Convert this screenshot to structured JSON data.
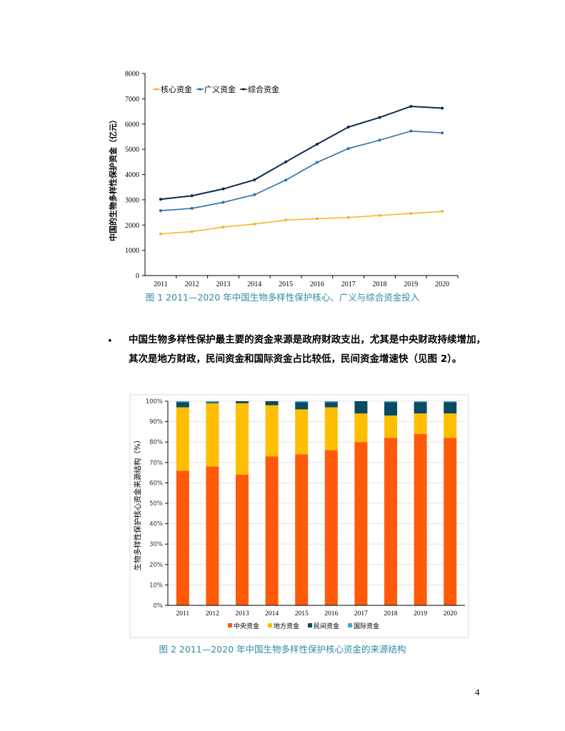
{
  "colors": {
    "core": "#f6b52b",
    "broad": "#2b6fa8",
    "comprehensive": "#0b2a52",
    "central": "#ff5a0a",
    "local": "#ffbe00",
    "private": "#0a4a63",
    "international": "#4aa6d6",
    "caption": "#2e8ba6"
  },
  "chart_data": [
    {
      "type": "line",
      "title": "",
      "ylabel": "中国的生物多样性保护资金（亿元）",
      "xlabel": "",
      "x": [
        "2011",
        "2012",
        "2013",
        "2014",
        "2015",
        "2016",
        "2017",
        "2018",
        "2019",
        "2020"
      ],
      "ylim": [
        0,
        8000
      ],
      "yticks": [
        "0",
        "1000",
        "2000",
        "3000",
        "4000",
        "5000",
        "6000",
        "7000",
        "8000"
      ],
      "legend": [
        "核心资金",
        "广义资金",
        "综合资金"
      ],
      "series": [
        {
          "name": "核心资金",
          "values": [
            1650,
            1740,
            1920,
            2040,
            2200,
            2250,
            2300,
            2380,
            2460,
            2540
          ]
        },
        {
          "name": "广义资金",
          "values": [
            2570,
            2660,
            2900,
            3200,
            3780,
            4480,
            5030,
            5360,
            5720,
            5650
          ]
        },
        {
          "name": "综合资金",
          "values": [
            3020,
            3160,
            3430,
            3790,
            4500,
            5200,
            5880,
            6260,
            6700,
            6630
          ]
        }
      ]
    },
    {
      "type": "bar",
      "stacked": true,
      "title": "",
      "ylabel": "生物多样性保护核心资金来源结构（%）",
      "xlabel": "",
      "categories": [
        "2011",
        "2012",
        "2013",
        "2014",
        "2015",
        "2016",
        "2017",
        "2018",
        "2019",
        "2020"
      ],
      "ylim": [
        0,
        100
      ],
      "yticks": [
        "0%",
        "10%",
        "20%",
        "30%",
        "40%",
        "50%",
        "60%",
        "70%",
        "80%",
        "90%",
        "100%"
      ],
      "series": [
        {
          "name": "中央资金",
          "values": [
            66,
            68,
            64,
            73,
            74,
            76,
            80,
            82,
            84,
            82
          ]
        },
        {
          "name": "地方资金",
          "values": [
            31,
            31,
            35,
            25,
            22,
            21,
            14,
            11,
            10,
            12
          ]
        },
        {
          "name": "民间资金",
          "values": [
            2.5,
            0.5,
            1,
            2,
            3.5,
            2.5,
            6,
            6.5,
            5.5,
            5.5
          ]
        },
        {
          "name": "国际资金",
          "values": [
            0.5,
            0.5,
            0,
            0,
            0.5,
            0.5,
            0,
            0.5,
            0.5,
            0.5
          ]
        }
      ]
    }
  ],
  "caption1": "图 1 2011—2020 年中国生物多样性保护核心、广义与综合资金投入",
  "paragraph": "中国生物多样性保护最主要的资金来源是政府财政支出，尤其是中央财政持续增加，其次是地方财政，民间资金和国际资金占比较低，民间资金增速快（见图 2）。",
  "bullet": "•",
  "caption2": "图 2 2011—2020 年中国生物多样性保护核心资金的来源结构",
  "page_number": "4"
}
